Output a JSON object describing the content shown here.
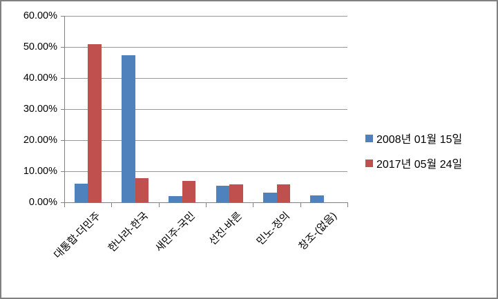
{
  "chart_data": {
    "type": "bar",
    "title": "",
    "categories": [
      "대통합-더민주",
      "한나라-한국",
      "새민주-국민",
      "선진-바른",
      "민노-정의",
      "창조-(없음)"
    ],
    "series": [
      {
        "name": "2008년 01월 15일",
        "color": "#4F81BD",
        "values": [
          5.9,
          47.3,
          2.0,
          5.3,
          3.1,
          2.2
        ]
      },
      {
        "name": "2017년 05월 24일",
        "color": "#C0504D",
        "values": [
          51.0,
          7.7,
          6.9,
          5.8,
          5.7,
          0.0
        ]
      }
    ],
    "y_axis": {
      "min": 0,
      "max": 60,
      "step": 10,
      "tick_labels": [
        "0.00%",
        "10.00%",
        "20.00%",
        "30.00%",
        "40.00%",
        "50.00%",
        "60.00%"
      ]
    },
    "x_axis": {
      "label_rotation_deg": -45
    },
    "legend_position": "right",
    "grid": true
  },
  "colors": {
    "frame_border": "#808080",
    "axis": "#808080",
    "gridline": "#969696",
    "background": "#ffffff",
    "text": "#000000"
  }
}
